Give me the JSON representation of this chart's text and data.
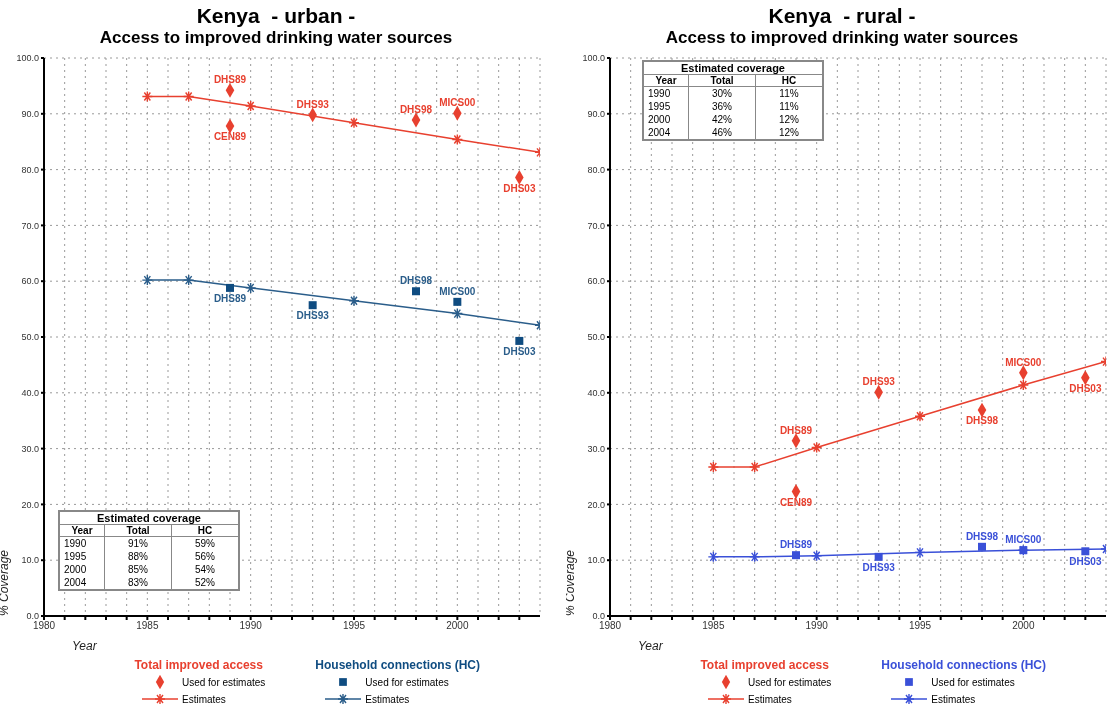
{
  "chart_data": [
    {
      "type": "line",
      "title": "Kenya  - urban -",
      "subtitle": "Access to improved drinking water sources",
      "xlabel": "Year",
      "ylabel": "% Coverage",
      "xlim": [
        1980,
        2004
      ],
      "ylim": [
        0,
        100
      ],
      "xticks": [
        1980,
        {
          "value": 1981,
          "label": null
        },
        {
          "value": 1982,
          "label": null
        },
        {
          "value": 1983,
          "label": null
        },
        {
          "value": 1984,
          "label": null
        },
        1985,
        {
          "value": 1986,
          "label": null
        },
        {
          "value": 1987,
          "label": null
        },
        {
          "value": 1988,
          "label": null
        },
        {
          "value": 1989,
          "label": null
        },
        1990,
        {
          "value": 1991,
          "label": null
        },
        {
          "value": 1992,
          "label": null
        },
        {
          "value": 1993,
          "label": null
        },
        {
          "value": 1994,
          "label": null
        },
        1995,
        {
          "value": 1996,
          "label": null
        },
        {
          "value": 1997,
          "label": null
        },
        {
          "value": 1998,
          "label": null
        },
        {
          "value": 1999,
          "label": null
        },
        2000,
        {
          "value": 2001,
          "label": null
        },
        {
          "value": 2002,
          "label": null
        },
        {
          "value": 2003,
          "label": null
        }
      ],
      "yticks": [
        {
          "value": 0,
          "label": "0.0"
        },
        {
          "value": 10,
          "label": "10.0"
        },
        {
          "value": 20,
          "label": "20.0"
        },
        {
          "value": 30,
          "label": "30.0"
        },
        {
          "value": 40,
          "label": "40.0"
        },
        {
          "value": 50,
          "label": "50.0"
        },
        {
          "value": 60,
          "label": "60.0"
        },
        {
          "value": 70,
          "label": "70.0"
        },
        {
          "value": 80,
          "label": "80.0"
        },
        {
          "value": 90,
          "label": "90.0"
        },
        {
          "value": 100,
          "label": "100.0"
        }
      ],
      "grid": true,
      "legend": "bottom",
      "series": [
        {
          "name": "Used for estimates",
          "type": "scatter",
          "marker": "diamond",
          "color": "#e8402f",
          "x": [
            1989,
            1989,
            1993,
            1998,
            2000,
            2003
          ],
          "values": [
            94.2,
            87.8,
            89.8,
            88.9,
            90.1,
            78.6
          ]
        },
        {
          "name": "Estimates",
          "type": "line",
          "marker": "cross",
          "color": "#e8402f",
          "x": [
            1985,
            1987,
            1990,
            1995,
            2000,
            2004
          ],
          "values": [
            93.1,
            93.1,
            91.4,
            88.4,
            85.4,
            83.1
          ]
        },
        {
          "name": "Used for estimates",
          "type": "scatter",
          "marker": "square",
          "color": "#0f4c81",
          "x": [
            1989,
            1993,
            1998,
            2000,
            2003
          ],
          "values": [
            58.8,
            55.7,
            58.2,
            56.3,
            49.3
          ]
        },
        {
          "name": "Estimates",
          "type": "line",
          "marker": "cross",
          "color": "#2a5d8a",
          "x": [
            1985,
            1987,
            1990,
            1995,
            2000,
            2004
          ],
          "values": [
            60.2,
            60.2,
            58.8,
            56.5,
            54.2,
            52.1
          ]
        }
      ],
      "annotations": [
        "Total improved access",
        "Household connections (HC)",
        "Estimated coverage",
        "Year",
        "Total",
        "HC",
        "1990",
        "91%",
        "59%",
        "1995",
        "88%",
        "56%",
        "2000",
        "85%",
        "54%",
        "2004",
        "83%",
        "52%",
        {
          "text": "DHS89",
          "x": 1989,
          "y": 94.2
        },
        {
          "text": "CEN89",
          "x": 1989,
          "y": 87.8
        },
        {
          "text": "DHS93",
          "x": 1993,
          "y": 89.8
        },
        {
          "text": "DHS98",
          "x": 1998,
          "y": 88.9
        },
        {
          "text": "MICS00",
          "x": 2000,
          "y": 90.1
        },
        {
          "text": "DHS03",
          "x": 2003,
          "y": 78.6
        },
        {
          "text": "DHS89",
          "x": 1989,
          "y": 58.8
        },
        {
          "text": "DHS93",
          "x": 1993,
          "y": 55.7
        },
        {
          "text": "DHS98",
          "x": 1998,
          "y": 58.2
        },
        {
          "text": "MICS00",
          "x": 2000,
          "y": 56.3
        },
        {
          "text": "DHS03",
          "x": 2003,
          "y": 49.3
        }
      ]
    },
    {
      "type": "line",
      "title": "Kenya  - rural -",
      "subtitle": "Access to improved drinking water sources",
      "xlabel": "Year",
      "ylabel": "% Coverage",
      "xlim": [
        1980,
        2004
      ],
      "ylim": [
        0,
        100
      ],
      "xticks": [
        1980,
        {
          "value": 1981,
          "label": null
        },
        {
          "value": 1982,
          "label": null
        },
        {
          "value": 1983,
          "label": null
        },
        {
          "value": 1984,
          "label": null
        },
        1985,
        {
          "value": 1986,
          "label": null
        },
        {
          "value": 1987,
          "label": null
        },
        {
          "value": 1988,
          "label": null
        },
        {
          "value": 1989,
          "label": null
        },
        1990,
        {
          "value": 1991,
          "label": null
        },
        {
          "value": 1992,
          "label": null
        },
        {
          "value": 1993,
          "label": null
        },
        {
          "value": 1994,
          "label": null
        },
        1995,
        {
          "value": 1996,
          "label": null
        },
        {
          "value": 1997,
          "label": null
        },
        {
          "value": 1998,
          "label": null
        },
        {
          "value": 1999,
          "label": null
        },
        2000,
        {
          "value": 2001,
          "label": null
        },
        {
          "value": 2002,
          "label": null
        },
        {
          "value": 2003,
          "label": null
        }
      ],
      "yticks": [
        {
          "value": 0,
          "label": "0.0"
        },
        {
          "value": 10,
          "label": "10.0"
        },
        {
          "value": 20,
          "label": "20.0"
        },
        {
          "value": 30,
          "label": "30.0"
        },
        {
          "value": 40,
          "label": "40.0"
        },
        {
          "value": 50,
          "label": "50.0"
        },
        {
          "value": 60,
          "label": "60.0"
        },
        {
          "value": 70,
          "label": "70.0"
        },
        {
          "value": 80,
          "label": "80.0"
        },
        {
          "value": 90,
          "label": "90.0"
        },
        {
          "value": 100,
          "label": "100.0"
        }
      ],
      "grid": true,
      "legend": "bottom",
      "series": [
        {
          "name": "Used for estimates",
          "type": "scatter",
          "marker": "diamond",
          "color": "#e8402f",
          "x": [
            1989,
            1989,
            1993,
            1998,
            2000,
            2003
          ],
          "values": [
            31.4,
            22.3,
            40.1,
            36.9,
            43.6,
            42.7
          ]
        },
        {
          "name": "Estimates",
          "type": "line",
          "marker": "cross",
          "color": "#e8402f",
          "x": [
            1985,
            1987,
            1990,
            1995,
            2000,
            2004
          ],
          "values": [
            26.7,
            26.7,
            30.2,
            35.8,
            41.4,
            45.6
          ]
        },
        {
          "name": "Used for estimates",
          "type": "scatter",
          "marker": "square",
          "color": "#3a50d8",
          "x": [
            1989,
            1993,
            1998,
            2000,
            2003
          ],
          "values": [
            10.9,
            10.6,
            12.4,
            11.8,
            11.6
          ]
        },
        {
          "name": "Estimates",
          "type": "line",
          "marker": "cross",
          "color": "#3a50d8",
          "x": [
            1985,
            1987,
            1990,
            1995,
            2000,
            2004
          ],
          "values": [
            10.6,
            10.6,
            10.8,
            11.4,
            11.8,
            12.0
          ]
        }
      ],
      "annotations": [
        "Total improved access",
        "Household connections (HC)",
        "Estimated coverage",
        "Year",
        "Total",
        "HC",
        "1990",
        "30%",
        "11%",
        "1995",
        "36%",
        "11%",
        "2000",
        "42%",
        "12%",
        "2004",
        "46%",
        "12%",
        {
          "text": "DHS89",
          "x": 1989,
          "y": 31.4
        },
        {
          "text": "CEN89",
          "x": 1989,
          "y": 22.3
        },
        {
          "text": "DHS93",
          "x": 1993,
          "y": 40.1
        },
        {
          "text": "DHS98",
          "x": 1998,
          "y": 36.9
        },
        {
          "text": "MICS00",
          "x": 2000,
          "y": 43.6
        },
        {
          "text": "DHS03",
          "x": 2003,
          "y": 42.7
        },
        {
          "text": "DHS89",
          "x": 1989,
          "y": 10.9
        },
        {
          "text": "DHS93",
          "x": 1993,
          "y": 10.6
        },
        {
          "text": "DHS98",
          "x": 1998,
          "y": 12.4
        },
        {
          "text": "MICS00",
          "x": 2000,
          "y": 11.8
        },
        {
          "text": "DHS03",
          "x": 2003,
          "y": 11.6
        }
      ]
    }
  ]
}
